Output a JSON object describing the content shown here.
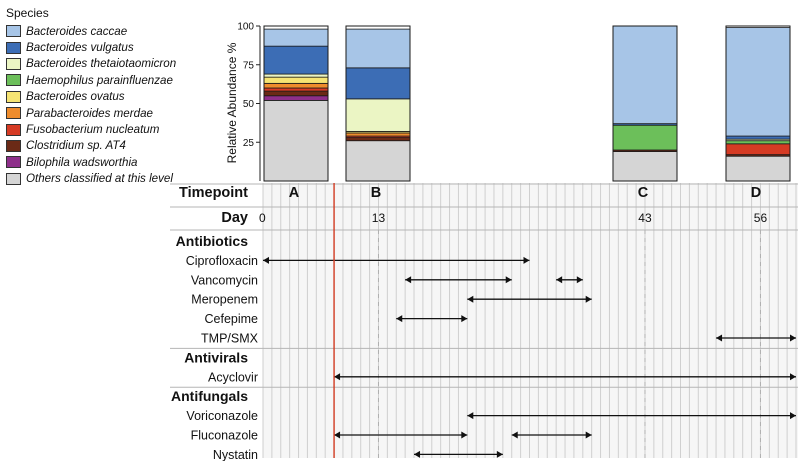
{
  "chart_data": {
    "type": "bar",
    "stacked": true,
    "legend_title": "Species",
    "legend_position": "top-left",
    "ylabel": "Relative Abundance %",
    "ylim": [
      0,
      100
    ],
    "yticks": [
      "25",
      "50",
      "75",
      "100"
    ],
    "series": [
      {
        "name": "Bacteroides caccae",
        "color": "#a7c5e7"
      },
      {
        "name": "Bacteroides vulgatus",
        "color": "#3c6db5"
      },
      {
        "name": "Bacteroides thetaiotaomicron",
        "color": "#ebf5c4"
      },
      {
        "name": "Haemophilus parainfluenzae",
        "color": "#6cbf5a"
      },
      {
        "name": "Bacteroides ovatus",
        "color": "#f6e473"
      },
      {
        "name": "Parabacteroides merdae",
        "color": "#ef8c2c"
      },
      {
        "name": "Fusobacterium nucleatum",
        "color": "#d63b24"
      },
      {
        "name": "Clostridium sp. AT4",
        "color": "#6b2a16"
      },
      {
        "name": "Bilophila wadsworthia",
        "color": "#8e2f8a"
      },
      {
        "name": "Others classified at this level",
        "color": "#d5d5d5"
      }
    ],
    "samples": [
      {
        "timepoint": "A",
        "day": 0,
        "values": [
          11,
          18,
          2,
          0,
          4,
          3,
          2,
          3,
          3,
          52
        ]
      },
      {
        "timepoint": "B",
        "day": 13,
        "values": [
          25,
          20,
          21,
          0,
          1,
          2,
          1,
          2,
          0,
          26
        ]
      },
      {
        "timepoint": "C",
        "day": 43,
        "values": [
          63,
          1,
          0,
          16,
          0,
          0,
          0,
          1,
          0,
          19
        ]
      },
      {
        "timepoint": "D",
        "day": 56,
        "values": [
          70,
          2,
          1,
          2,
          0,
          0,
          7,
          1,
          0,
          16
        ]
      }
    ],
    "timepoint_label": "Timepoint",
    "day_label": "Day",
    "day_ticks": [
      0,
      13,
      43,
      56
    ],
    "day_range": [
      0,
      60
    ],
    "marker_day": 8,
    "treatment_groups": [
      {
        "name": "Antibiotics",
        "drugs": [
          {
            "name": "Ciprofloxacin",
            "periods": [
              [
                0,
                30
              ]
            ]
          },
          {
            "name": "Vancomycin",
            "periods": [
              [
                16,
                28
              ],
              [
                33,
                36
              ]
            ]
          },
          {
            "name": "Meropenem",
            "periods": [
              [
                23,
                37
              ]
            ]
          },
          {
            "name": "Cefepime",
            "periods": [
              [
                15,
                23
              ]
            ]
          },
          {
            "name": "TMP/SMX",
            "periods": [
              [
                51,
                60
              ]
            ]
          }
        ]
      },
      {
        "name": "Antivirals",
        "drugs": [
          {
            "name": "Acyclovir",
            "periods": [
              [
                8,
                60
              ]
            ]
          }
        ]
      },
      {
        "name": "Antifungals",
        "drugs": [
          {
            "name": "Voriconazole",
            "periods": [
              [
                23,
                60
              ]
            ]
          },
          {
            "name": "Fluconazole",
            "periods": [
              [
                8,
                23
              ],
              [
                28,
                37
              ]
            ]
          },
          {
            "name": "Nystatin",
            "periods": [
              [
                17,
                27
              ]
            ]
          }
        ]
      }
    ]
  }
}
